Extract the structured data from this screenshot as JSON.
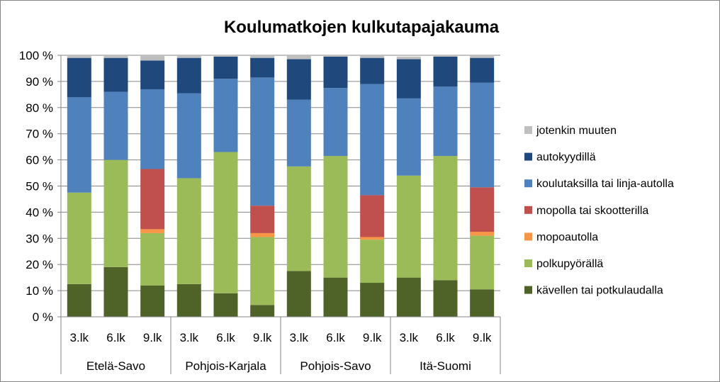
{
  "chart_data": {
    "type": "bar",
    "stacked": true,
    "percent": true,
    "title": "Koulumatkojen kulkutapajakauma",
    "ylim": [
      0,
      100
    ],
    "yticks": [
      "0 %",
      "10 %",
      "20 %",
      "30 %",
      "40 %",
      "50 %",
      "60 %",
      "70 %",
      "80 %",
      "90 %",
      "100 %"
    ],
    "groups": [
      "Etelä-Savo",
      "Pohjois-Karjala",
      "Pohjois-Savo",
      "Itä-Suomi"
    ],
    "categories": [
      "3.lk",
      "6.lk",
      "9.lk",
      "3.lk",
      "6.lk",
      "9.lk",
      "3.lk",
      "6.lk",
      "9.lk",
      "3.lk",
      "6.lk",
      "9.lk"
    ],
    "legend_position": "right",
    "series": [
      {
        "name": "kävellen tai potkulaudalla",
        "color": "#4f6228",
        "values": [
          12.5,
          19,
          12,
          12.5,
          9,
          4.5,
          17.5,
          15,
          13,
          15,
          14,
          10.5
        ]
      },
      {
        "name": "polkupyörällä",
        "color": "#9bbb59",
        "values": [
          35,
          41,
          20,
          40.5,
          54,
          26,
          40,
          46.5,
          16.5,
          39,
          47.5,
          20.5
        ]
      },
      {
        "name": "mopoautolla",
        "color": "#f79646",
        "values": [
          0,
          0,
          1.5,
          0,
          0,
          1.5,
          0,
          0,
          1,
          0,
          0,
          1.5
        ]
      },
      {
        "name": "mopolla tai skootterilla",
        "color": "#c0504d",
        "values": [
          0,
          0,
          23,
          0,
          0,
          10.5,
          0,
          0,
          16,
          0,
          0,
          17
        ]
      },
      {
        "name": "koulutaksilla tai linja-autolla",
        "color": "#4f81bd",
        "values": [
          36.5,
          26,
          30.5,
          32.5,
          28,
          49,
          25.5,
          26,
          42.5,
          29.5,
          26.5,
          40
        ]
      },
      {
        "name": "autokyydillä",
        "color": "#1f497d",
        "values": [
          15,
          13,
          11,
          13.5,
          8.5,
          7.5,
          15.5,
          12,
          10,
          15,
          11.5,
          9.5
        ]
      },
      {
        "name": "jotenkin muuten",
        "color": "#bfbfbf",
        "values": [
          1,
          1,
          2,
          1,
          0.5,
          1,
          1.5,
          0.5,
          1,
          1,
          0.5,
          1
        ]
      }
    ]
  }
}
